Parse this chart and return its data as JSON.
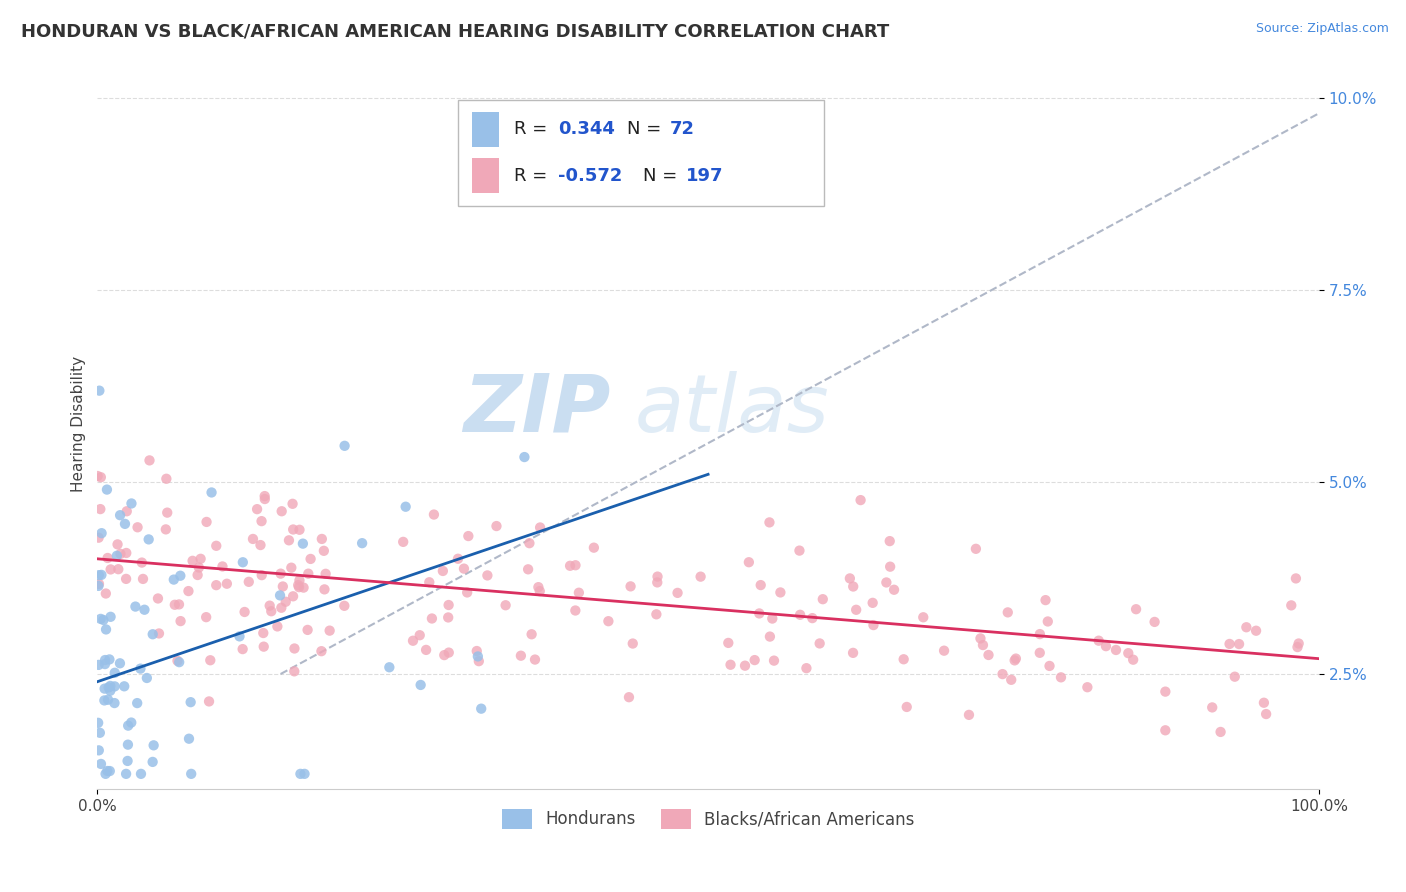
{
  "title": "HONDURAN VS BLACK/AFRICAN AMERICAN HEARING DISABILITY CORRELATION CHART",
  "source_text": "Source: ZipAtlas.com",
  "ylabel": "Hearing Disability",
  "xlim": [
    0.0,
    1.0
  ],
  "ylim": [
    0.01,
    0.105
  ],
  "yticks": [
    0.025,
    0.05,
    0.075,
    0.1
  ],
  "ytick_labels": [
    "2.5%",
    "5.0%",
    "7.5%",
    "10.0%"
  ],
  "xticks": [
    0.0,
    1.0
  ],
  "xtick_labels": [
    "0.0%",
    "100.0%"
  ],
  "blue_color": "#99c0e8",
  "pink_color": "#f0a8b8",
  "blue_line_color": "#1a5fad",
  "pink_line_color": "#d93060",
  "gray_dash_color": "#b0b8c8",
  "legend_label1": "Hondurans",
  "legend_label2": "Blacks/African Americans",
  "title_fontsize": 13,
  "axis_label_fontsize": 11,
  "tick_fontsize": 11,
  "blue_line_x0": 0.0,
  "blue_line_y0": 0.024,
  "blue_line_x1": 0.5,
  "blue_line_y1": 0.051,
  "pink_line_x0": 0.0,
  "pink_line_y0": 0.04,
  "pink_line_x1": 1.0,
  "pink_line_y1": 0.027,
  "gray_line_x0": 0.15,
  "gray_line_y0": 0.025,
  "gray_line_x1": 1.0,
  "gray_line_y1": 0.098
}
